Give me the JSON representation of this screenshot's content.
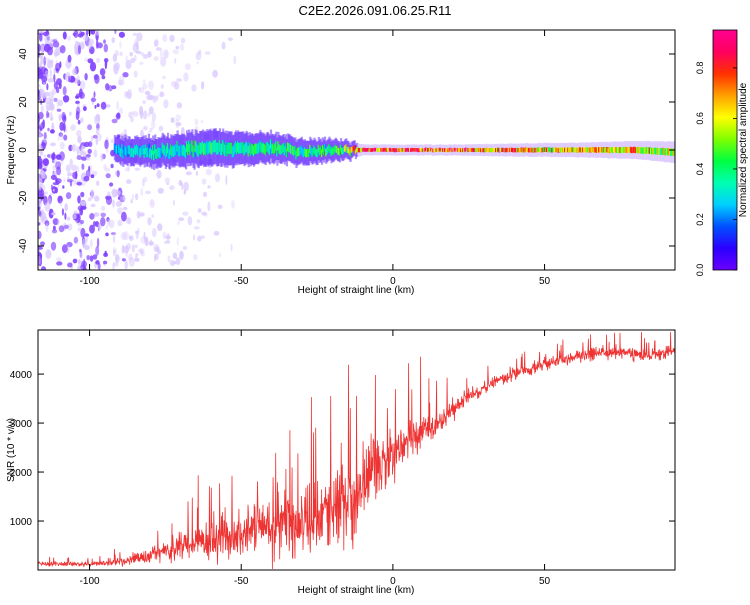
{
  "title": "C2E2.2026.091.06.25.R11",
  "colors": {
    "line": "#ee3333",
    "axis": "#000000",
    "scatter_low": "#7f3fff",
    "scatter_faint": "#d9c8ff"
  },
  "chart_data": [
    {
      "type": "heatmap",
      "xlabel": "Height of straight line (km)",
      "ylabel": "Frequency (Hz)",
      "xlim": [
        -117,
        93
      ],
      "ylim": [
        -50,
        50
      ],
      "xticks": [
        -100,
        -50,
        0,
        50
      ],
      "yticks": [
        -40,
        -20,
        0,
        20,
        40
      ],
      "xtick_labels": [
        "-100",
        "-50",
        "0",
        "50"
      ],
      "ytick_labels": [
        "-40",
        "-20",
        "0",
        "20",
        "40"
      ],
      "colorbar": {
        "label": "Normalized spectral amplitude",
        "range": [
          0,
          0.95
        ],
        "ticks": [
          0,
          0.2,
          0.4,
          0.6,
          0.8
        ],
        "tick_labels": [
          "0.0",
          "0.2",
          "0.4",
          "0.6",
          "0.8"
        ],
        "colormap": [
          "#6a00ff",
          "#2b00ff",
          "#0050ff",
          "#00d0ff",
          "#00ffb0",
          "#00ff40",
          "#80ff00",
          "#ffff00",
          "#ffa000",
          "#ff3000",
          "#ff0060",
          "#ff0090"
        ]
      },
      "band": {
        "description_points_x": [
          -92,
          -80,
          -70,
          -60,
          -50,
          -40,
          -30,
          -20,
          -15,
          -10,
          0,
          20,
          40,
          60,
          80,
          93
        ],
        "center_freq": [
          0,
          -1,
          0,
          1,
          0,
          1,
          -1,
          0,
          0,
          0,
          0,
          0,
          0,
          0,
          0,
          -1
        ],
        "half_width": [
          3.5,
          4,
          4.5,
          5,
          4.5,
          4,
          3.5,
          3,
          2.5,
          1.5,
          1.5,
          1.5,
          1.8,
          2,
          2.5,
          3
        ],
        "peak_amplitude": [
          0.3,
          0.35,
          0.4,
          0.45,
          0.4,
          0.5,
          0.45,
          0.45,
          0.6,
          0.95,
          0.9,
          0.95,
          0.8,
          0.7,
          0.75,
          0.6
        ]
      }
    },
    {
      "type": "line",
      "xlabel": "Height of straight line (km)",
      "ylabel": "SNR (10 * v/v)",
      "xlim": [
        -117,
        93
      ],
      "ylim": [
        0,
        4900
      ],
      "xticks": [
        -100,
        -50,
        0,
        50
      ],
      "yticks": [
        1000,
        2000,
        3000,
        4000
      ],
      "xtick_labels": [
        "-100",
        "-50",
        "0",
        "50"
      ],
      "ytick_labels": [
        "1000",
        "2000",
        "3000",
        "4000"
      ],
      "series": [
        {
          "name": "SNR",
          "x": [
            -117,
            -110,
            -100,
            -95,
            -90,
            -85,
            -80,
            -75,
            -70,
            -65,
            -60,
            -55,
            -50,
            -45,
            -40,
            -35,
            -30,
            -25,
            -20,
            -15,
            -13,
            -10,
            -5,
            0,
            5,
            10,
            15,
            20,
            25,
            30,
            35,
            40,
            45,
            50,
            55,
            60,
            65,
            70,
            75,
            80,
            85,
            90,
            93
          ],
          "y_mean": [
            120,
            130,
            120,
            140,
            180,
            230,
            300,
            380,
            450,
            550,
            600,
            700,
            800,
            900,
            950,
            900,
            1000,
            1100,
            1250,
            1400,
            1200,
            1800,
            2100,
            2300,
            2700,
            2800,
            3000,
            3300,
            3550,
            3700,
            3900,
            4000,
            4100,
            4200,
            4300,
            4350,
            4400,
            4450,
            4450,
            4400,
            4350,
            4450,
            4500
          ],
          "y_spread": [
            90,
            90,
            90,
            100,
            150,
            200,
            300,
            400,
            500,
            650,
            800,
            900,
            1000,
            1200,
            1300,
            1400,
            1400,
            1500,
            1500,
            1600,
            1700,
            1400,
            1200,
            1000,
            800,
            700,
            500,
            400,
            300,
            250,
            250,
            250,
            250,
            250,
            250,
            250,
            250,
            250,
            250,
            250,
            250,
            250,
            250
          ]
        }
      ]
    }
  ]
}
